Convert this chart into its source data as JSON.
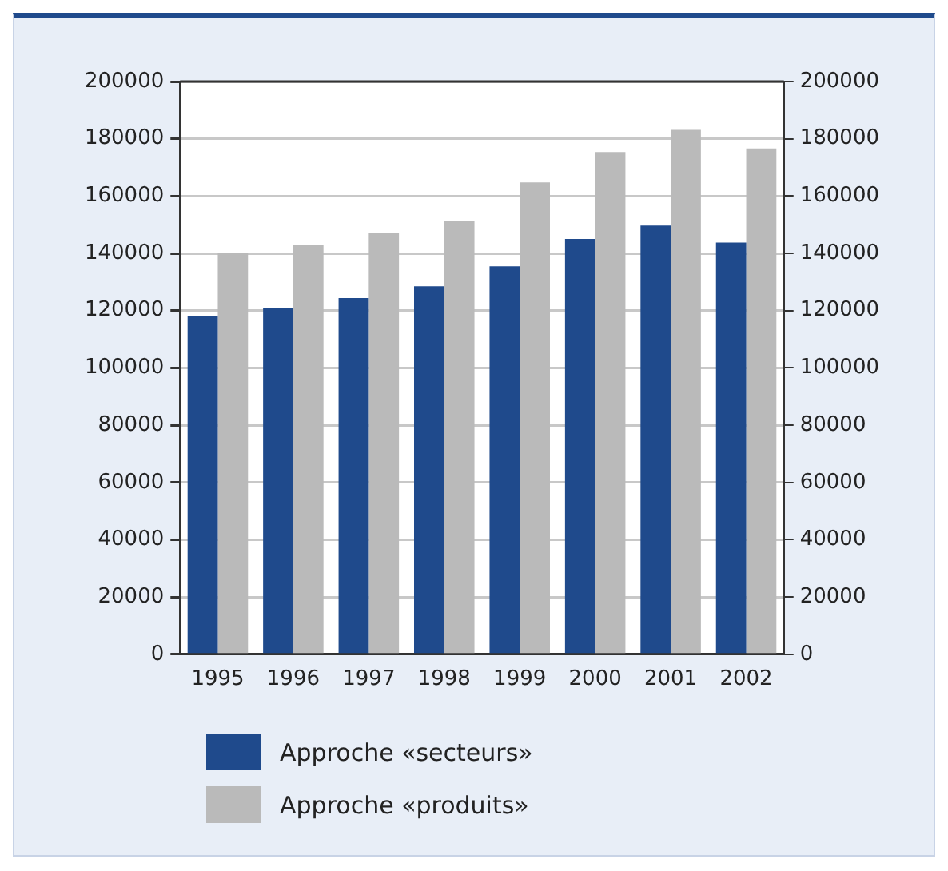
{
  "chart_data": {
    "type": "bar",
    "categories": [
      "1995",
      "1996",
      "1997",
      "1998",
      "1999",
      "2000",
      "2001",
      "2002"
    ],
    "series": [
      {
        "name": "Approche «secteurs»",
        "color": "#1f4a8c",
        "values": [
          118000,
          121000,
          124400,
          128500,
          135500,
          145000,
          149700,
          143800
        ]
      },
      {
        "name": "Approche «produits»",
        "color": "#bababa",
        "values": [
          140000,
          143100,
          147200,
          151300,
          164800,
          175400,
          183100,
          176600
        ]
      }
    ],
    "ylim": [
      0,
      200000
    ],
    "yticks": [
      0,
      20000,
      40000,
      60000,
      80000,
      100000,
      120000,
      140000,
      160000,
      180000,
      200000
    ],
    "y2lim": [
      0,
      200000
    ],
    "y2ticks": [
      0,
      20000,
      40000,
      60000,
      80000,
      100000,
      120000,
      140000,
      160000,
      180000,
      200000
    ],
    "grid": "y",
    "legend": "bottom left"
  }
}
